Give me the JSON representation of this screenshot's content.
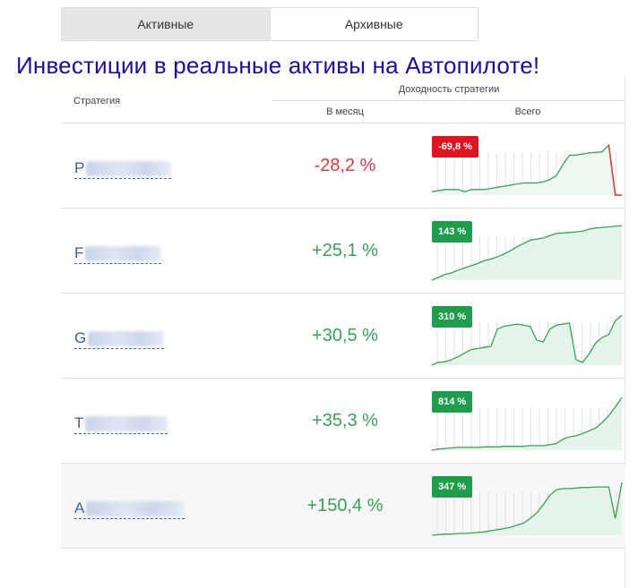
{
  "tabs": [
    {
      "label": "Активные",
      "active": true
    },
    {
      "label": "Архивные",
      "active": false
    }
  ],
  "headline": "Инвестиции в реальные активы на Автопилоте!",
  "table": {
    "col_strategy": "Стратегия",
    "col_yield": "Доходность стратегии",
    "col_month": "В месяц",
    "col_total": "Всего"
  },
  "colors": {
    "negative": "#e53935",
    "positive": "#3aa05a",
    "badge_negative": "#e0141e",
    "badge_positive": "#1e9e4a",
    "link": "#3a5ca8"
  },
  "strategies": [
    {
      "name_visible": "P",
      "month": "-28,2 %",
      "total": "-69,8 %",
      "sign": "neg",
      "spark": [
        0.06,
        0.08,
        0.1,
        0.1,
        0.1,
        0.06,
        0.1,
        0.1,
        0.1,
        0.12,
        0.14,
        0.16,
        0.18,
        0.2,
        0.22,
        0.22,
        0.22,
        0.24,
        0.28,
        0.35,
        0.55,
        0.72,
        0.72,
        0.74,
        0.76,
        0.77,
        0.78,
        0.9,
        0.0,
        0.0
      ]
    },
    {
      "name_visible": "F",
      "month": "+25,1 %",
      "total": "143 %",
      "sign": "pos",
      "spark": [
        0.0,
        0.05,
        0.1,
        0.13,
        0.18,
        0.22,
        0.26,
        0.3,
        0.35,
        0.38,
        0.42,
        0.47,
        0.53,
        0.6,
        0.66,
        0.72,
        0.74,
        0.76,
        0.8,
        0.84,
        0.85,
        0.86,
        0.87,
        0.88,
        0.92,
        0.94,
        0.95,
        0.96,
        0.97,
        0.98
      ]
    },
    {
      "name_visible": "G",
      "month": "+30,5 %",
      "total": "310 %",
      "sign": "pos",
      "spark": [
        0.0,
        0.05,
        0.06,
        0.1,
        0.15,
        0.22,
        0.28,
        0.3,
        0.32,
        0.34,
        0.65,
        0.7,
        0.72,
        0.74,
        0.72,
        0.7,
        0.45,
        0.42,
        0.65,
        0.72,
        0.74,
        0.76,
        0.1,
        0.05,
        0.2,
        0.4,
        0.5,
        0.55,
        0.8,
        0.9
      ]
    },
    {
      "name_visible": "T",
      "month": "+35,3 %",
      "total": "814 %",
      "sign": "pos",
      "spark": [
        0.0,
        0.02,
        0.03,
        0.04,
        0.05,
        0.05,
        0.05,
        0.05,
        0.06,
        0.06,
        0.06,
        0.07,
        0.07,
        0.07,
        0.07,
        0.08,
        0.08,
        0.08,
        0.1,
        0.12,
        0.2,
        0.24,
        0.26,
        0.3,
        0.35,
        0.4,
        0.5,
        0.62,
        0.78,
        0.95
      ]
    },
    {
      "name_visible": "A",
      "month": "+150,4 %",
      "total": "347 %",
      "sign": "pos",
      "spark": [
        0.0,
        0.01,
        0.02,
        0.02,
        0.03,
        0.03,
        0.04,
        0.05,
        0.06,
        0.08,
        0.1,
        0.12,
        0.14,
        0.18,
        0.22,
        0.3,
        0.4,
        0.55,
        0.72,
        0.82,
        0.84,
        0.84,
        0.85,
        0.86,
        0.86,
        0.87,
        0.87,
        0.87,
        0.3,
        0.95
      ]
    }
  ]
}
